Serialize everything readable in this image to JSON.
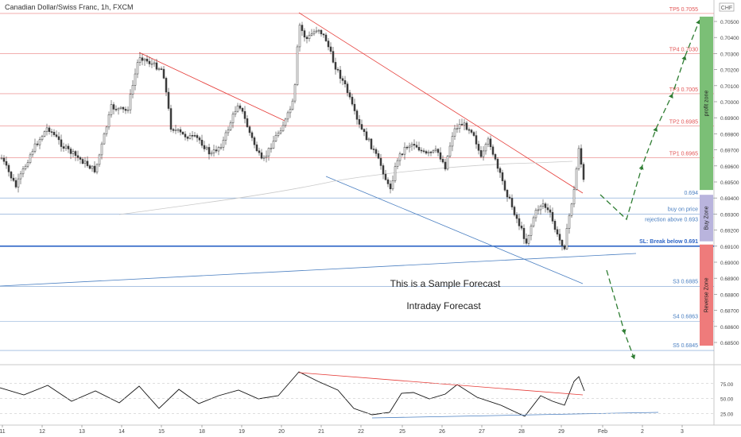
{
  "chart_data": {
    "type": "candlestick",
    "title": "Canadian Dollar/Swiss Franc, 1h, FXCM",
    "currency_badge": "CHF",
    "y_ticks": [
      "0.70500",
      "0.70400",
      "0.70300",
      "0.70200",
      "0.70100",
      "0.70000",
      "0.69900",
      "0.69800",
      "0.69700",
      "0.69600",
      "0.69500",
      "0.69400",
      "0.69300",
      "0.69200",
      "0.69100",
      "0.69000",
      "0.68900",
      "0.68800",
      "0.68700",
      "0.68600",
      "0.68500"
    ],
    "y_tick_values": [
      0.705,
      0.704,
      0.703,
      0.702,
      0.701,
      0.7,
      0.699,
      0.698,
      0.697,
      0.696,
      0.695,
      0.694,
      0.693,
      0.692,
      0.691,
      0.69,
      0.689,
      0.688,
      0.687,
      0.686,
      0.685
    ],
    "x_ticks": [
      "11",
      "12",
      "13",
      "14",
      "15",
      "18",
      "19",
      "20",
      "21",
      "22",
      "25",
      "26",
      "27",
      "28",
      "29",
      "Feb",
      "2",
      "3"
    ],
    "levels": [
      {
        "label": "TP5 0.7055",
        "value": 0.7055,
        "color": "#e25555"
      },
      {
        "label": "TP4 0.7030",
        "value": 0.703,
        "color": "#e25555"
      },
      {
        "label": "TP3 0.7005",
        "value": 0.7005,
        "color": "#e25555"
      },
      {
        "label": "TP2 0.6985",
        "value": 0.6985,
        "color": "#e25555"
      },
      {
        "label": "TP1 0.6965",
        "value": 0.6965,
        "color": "#e25555"
      },
      {
        "label": "0.694",
        "value": 0.694,
        "color": "#4a7fc1"
      },
      {
        "label": "buy on price",
        "value": 0.693,
        "color": "#4a7fc1"
      },
      {
        "label": "rejection above 0.693",
        "value": 0.693,
        "color": "#4a7fc1"
      },
      {
        "label": "SL: Break below 0.691",
        "value": 0.691,
        "color": "#2f66c7"
      },
      {
        "label": "S3 0.6885",
        "value": 0.6885,
        "color": "#4a7fc1"
      },
      {
        "label": "S4 0.6863",
        "value": 0.6863,
        "color": "#4a7fc1"
      },
      {
        "label": "S5 0.6845",
        "value": 0.6845,
        "color": "#4a7fc1"
      }
    ],
    "zones": [
      {
        "label": "profit zone",
        "from": 0.6945,
        "to": 0.7053,
        "color": "#7bbf76"
      },
      {
        "label": "Buy Zone",
        "from": 0.6913,
        "to": 0.6942,
        "color": "#b9b4dd"
      },
      {
        "label": "Reverse Zone",
        "from": 0.6848,
        "to": 0.6911,
        "color": "#ef7b7b"
      }
    ],
    "annotations": [
      "This is a Sample Forecast",
      "Intraday Forecast"
    ],
    "rsi_ticks": [
      "75.00",
      "50.00",
      "25.00"
    ],
    "rsi_tick_values": [
      75,
      50,
      25
    ],
    "colors": {
      "up": "#3a3a3a",
      "down": "#3a3a3a",
      "resistance": "#e53935",
      "support": "#4a7fc1",
      "forecast_up": "#2e7d32",
      "forecast_down": "#2e7d32"
    }
  }
}
